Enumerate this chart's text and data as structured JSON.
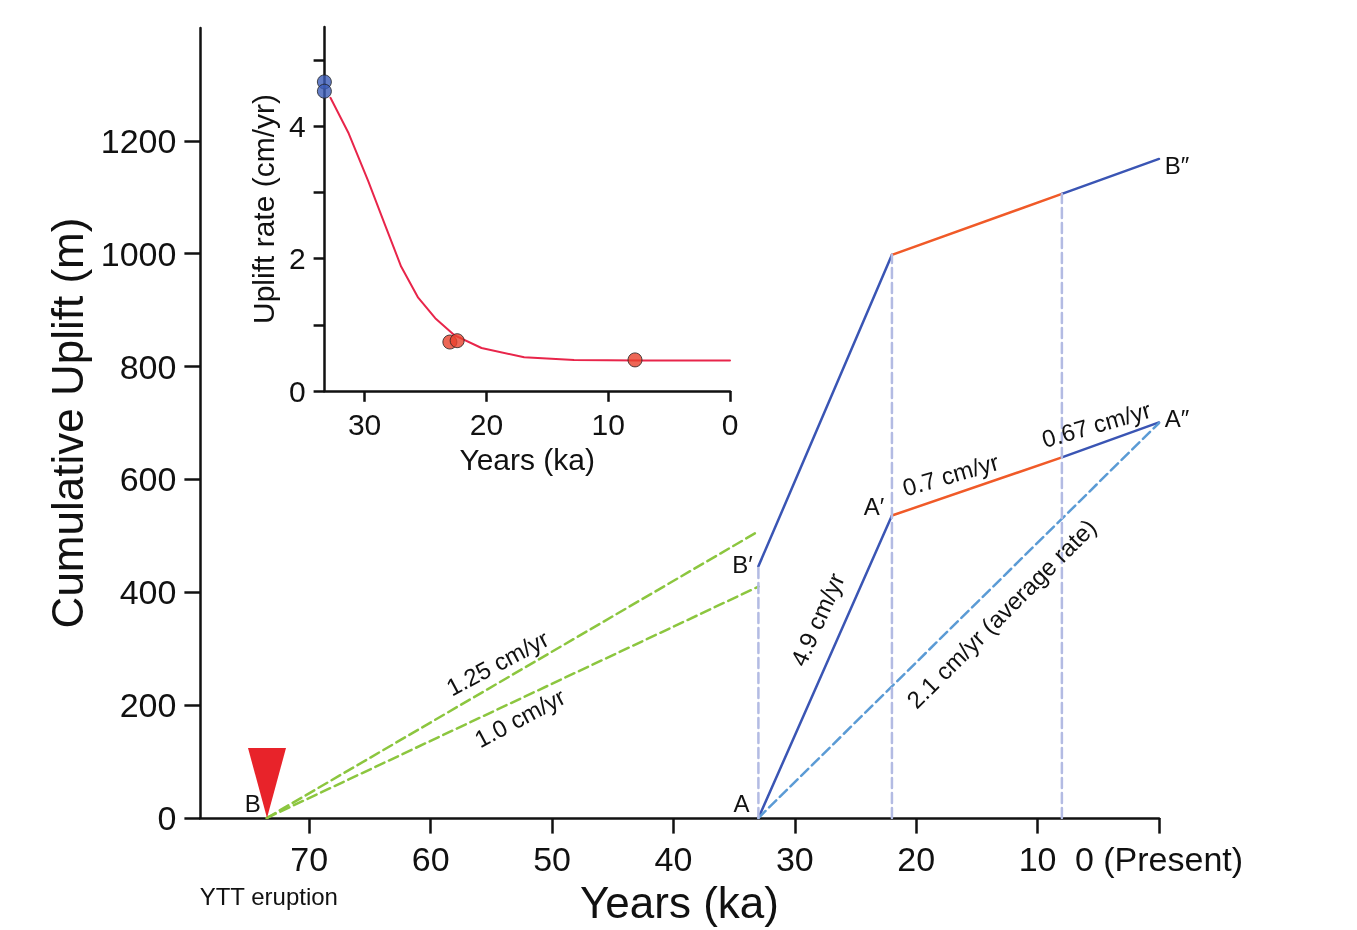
{
  "chart_data": [
    {
      "type": "line",
      "xlabel": "Years (ka)",
      "ylabel": "Cumulative Uplift (m)",
      "xlim": [
        79,
        0
      ],
      "xticks": [
        70,
        60,
        50,
        40,
        30,
        20,
        10,
        {
          "value": 0,
          "label": "0 (Present)"
        }
      ],
      "ylim": [
        0,
        1400
      ],
      "yticks": [
        0,
        200,
        400,
        600,
        800,
        1000,
        1200
      ],
      "marker": "none",
      "line_style": "solid",
      "series": [
        {
          "color": "#3a55b4",
          "x": [
            33,
            22
          ],
          "values": [
            0,
            536
          ]
        },
        {
          "color": "#f05a28",
          "x": [
            22,
            8
          ],
          "values": [
            536,
            639
          ]
        },
        {
          "color": "#3a55b4",
          "x": [
            8,
            0
          ],
          "values": [
            639,
            701
          ]
        },
        {
          "color": "#3a55b4",
          "x": [
            33,
            22
          ],
          "values": [
            446,
            998
          ]
        },
        {
          "color": "#f05a28",
          "x": [
            22,
            8
          ],
          "values": [
            998,
            1106
          ]
        },
        {
          "color": "#3a55b4",
          "x": [
            8,
            0
          ],
          "values": [
            1106,
            1168
          ]
        },
        {
          "color": "#8cc63f",
          "x": [
            73.5,
            33
          ],
          "values": [
            0,
            508
          ],
          "line_style": "dashed"
        },
        {
          "color": "#8cc63f",
          "x": [
            73.5,
            33
          ],
          "values": [
            0,
            410
          ],
          "line_style": "dashed"
        },
        {
          "color": "#5b9bd5",
          "x": [
            33,
            0
          ],
          "values": [
            0,
            700
          ],
          "line_style": "dashed"
        },
        {
          "color": "#b3bbe3",
          "x": [
            33,
            33
          ],
          "values": [
            0,
            446
          ],
          "line_style": "dashed"
        },
        {
          "color": "#b3bbe3",
          "x": [
            22,
            22
          ],
          "values": [
            0,
            998
          ],
          "line_style": "dashed"
        },
        {
          "color": "#b3bbe3",
          "x": [
            8,
            8
          ],
          "values": [
            0,
            1106
          ],
          "line_style": "dashed"
        }
      ],
      "annotations": [
        {
          "text": "B",
          "x": 73.5,
          "y": 0
        },
        {
          "text": "A",
          "x": 33,
          "y": 0
        },
        {
          "text": "B′",
          "x": 33,
          "y": 446
        },
        {
          "text": "A′",
          "x": 22,
          "y": 536
        },
        {
          "text": "A″",
          "x": 0,
          "y": 701
        },
        {
          "text": "B″",
          "x": 0,
          "y": 1168
        },
        {
          "text": "1.25 cm/yr",
          "x": 55,
          "y": 232
        },
        {
          "text": "1.0 cm/yr",
          "x": 52,
          "y": 218
        },
        {
          "text": "4.9 cm/yr",
          "x": 26,
          "y": 341
        },
        {
          "text": "0.7 cm/yr",
          "x": 17,
          "y": 573
        },
        {
          "text": "0.67 cm/yr",
          "x": 5,
          "y": 662
        },
        {
          "text": "2.1 cm/yr (average rate)",
          "x": 14.8,
          "y": 387
        },
        {
          "text": "YTT eruption",
          "x": 73.5,
          "y": 0
        }
      ]
    },
    {
      "type": "line",
      "xlabel": "Years (ka)",
      "ylabel": "Uplift rate (cm/yr)",
      "xlim": [
        33.3,
        0
      ],
      "xticks": [
        30,
        20,
        10,
        0
      ],
      "ylim": [
        0,
        5.5
      ],
      "yticks": [
        0,
        {
          "value": 1,
          "label": null
        },
        2,
        {
          "value": 3,
          "label": null
        },
        4,
        {
          "value": 5,
          "label": null
        }
      ],
      "series": [
        {
          "color": "#e8254a",
          "marker": "none",
          "x": [
            32.8,
            31.3,
            29.7,
            28.3,
            27.0,
            25.6,
            24.2,
            22.6,
            20.4,
            16.9,
            12.8,
            7.3,
            0
          ],
          "values": [
            4.43,
            3.89,
            3.17,
            2.5,
            1.88,
            1.41,
            1.1,
            0.84,
            0.65,
            0.51,
            0.47,
            0.46,
            0.46
          ]
        },
        {
          "type": "scatter",
          "color": "#3c5cb8",
          "marker": "circle",
          "x": [
            33.3,
            33.3
          ],
          "values": [
            4.67,
            4.53
          ]
        },
        {
          "type": "scatter",
          "color": "#e8412c",
          "marker": "circle",
          "x": [
            23.0,
            22.4,
            7.8
          ],
          "values": [
            0.74,
            0.76,
            0.47
          ]
        }
      ]
    }
  ]
}
